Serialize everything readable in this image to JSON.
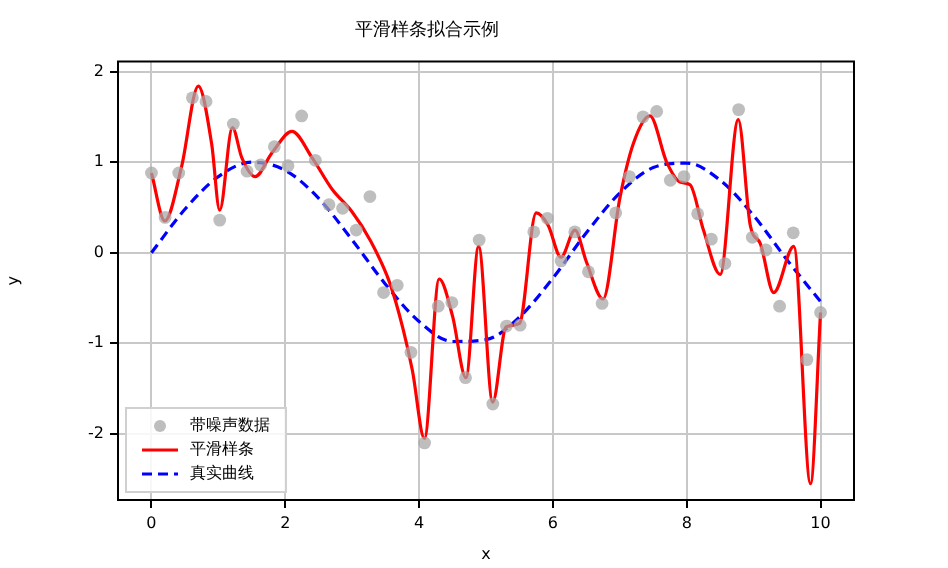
{
  "chart_data": {
    "type": "line",
    "title": "平滑样条拟合示例",
    "xlabel": "x",
    "ylabel": "y",
    "xlim": [
      -0.5,
      10.5
    ],
    "ylim": [
      -2.73,
      2.11
    ],
    "xticks": [
      0,
      2,
      4,
      6,
      8,
      10
    ],
    "yticks": [
      -2,
      -1,
      0,
      1,
      2
    ],
    "grid": true,
    "legend": "bottom left",
    "series": [
      {
        "name": "带噪声数据",
        "type": "scatter",
        "marker": "circle",
        "color": "#a6a6a6",
        "x": [
          0,
          0.204,
          0.408,
          0.612,
          0.816,
          1.02,
          1.224,
          1.429,
          1.633,
          1.837,
          2.041,
          2.245,
          2.449,
          2.653,
          2.857,
          3.061,
          3.265,
          3.469,
          3.673,
          3.878,
          4.082,
          4.286,
          4.49,
          4.694,
          4.898,
          5.102,
          5.306,
          5.51,
          5.714,
          5.918,
          6.122,
          6.327,
          6.531,
          6.735,
          6.939,
          7.143,
          7.347,
          7.551,
          7.755,
          7.959,
          8.163,
          8.367,
          8.571,
          8.776,
          8.98,
          9.184,
          9.388,
          9.592,
          9.796,
          10
        ],
        "values": [
          0.88,
          0.39,
          0.88,
          1.71,
          1.67,
          0.36,
          1.42,
          0.9,
          0.97,
          1.17,
          0.96,
          1.51,
          1.02,
          0.53,
          0.49,
          0.25,
          0.62,
          -0.44,
          -0.36,
          -1.1,
          -2.1,
          -0.59,
          -0.55,
          -1.38,
          0.14,
          -1.67,
          -0.81,
          -0.8,
          0.23,
          0.38,
          -0.09,
          0.23,
          -0.21,
          -0.56,
          0.44,
          0.84,
          1.5,
          1.56,
          0.8,
          0.84,
          0.43,
          0.15,
          -0.12,
          1.58,
          0.17,
          0.03,
          -0.59,
          0.22,
          -1.18,
          -0.66
        ]
      },
      {
        "name": "平滑样条",
        "marker": "none",
        "line_style": "solid",
        "color": "#ff0000",
        "x": [
          0,
          0.2,
          0.45,
          0.7,
          0.9,
          1.02,
          1.21,
          1.35,
          1.55,
          1.8,
          2.1,
          2.4,
          2.7,
          3.0,
          3.26,
          3.56,
          3.76,
          3.9,
          4.08,
          4.3,
          4.5,
          4.7,
          4.89,
          5.1,
          5.3,
          5.5,
          5.75,
          5.93,
          6.12,
          6.33,
          6.5,
          6.75,
          7.0,
          7.2,
          7.45,
          7.7,
          7.9,
          8.05,
          8.25,
          8.5,
          8.77,
          8.95,
          9.1,
          9.3,
          9.6,
          9.85,
          10
        ],
        "values": [
          0.88,
          0.35,
          0.95,
          1.84,
          1.2,
          0.47,
          1.38,
          1.05,
          0.84,
          1.1,
          1.34,
          1.05,
          0.7,
          0.45,
          0.15,
          -0.33,
          -0.84,
          -1.3,
          -2.05,
          -0.29,
          -0.7,
          -1.38,
          0.07,
          -1.65,
          -0.82,
          -0.78,
          0.44,
          0.3,
          -0.05,
          0.25,
          -0.1,
          -0.51,
          0.6,
          1.2,
          1.51,
          1.0,
          0.78,
          0.75,
          0.25,
          -0.24,
          1.47,
          0.3,
          0.1,
          -0.44,
          0.07,
          -2.55,
          -0.66
        ]
      },
      {
        "name": "真实曲线",
        "marker": "none",
        "line_style": "dashed",
        "color": "#0000ff",
        "x": [
          0,
          0.5,
          1,
          1.5,
          2,
          2.5,
          3,
          3.5,
          4,
          4.5,
          5,
          5.5,
          6,
          6.5,
          7,
          7.5,
          8,
          8.5,
          9,
          9.5,
          10
        ],
        "values": [
          0,
          0.48,
          0.84,
          1.0,
          0.91,
          0.6,
          0.14,
          -0.35,
          -0.76,
          -0.98,
          -0.96,
          -0.71,
          -0.28,
          0.22,
          0.66,
          0.94,
          0.99,
          0.8,
          0.41,
          -0.08,
          -0.54
        ]
      }
    ]
  }
}
